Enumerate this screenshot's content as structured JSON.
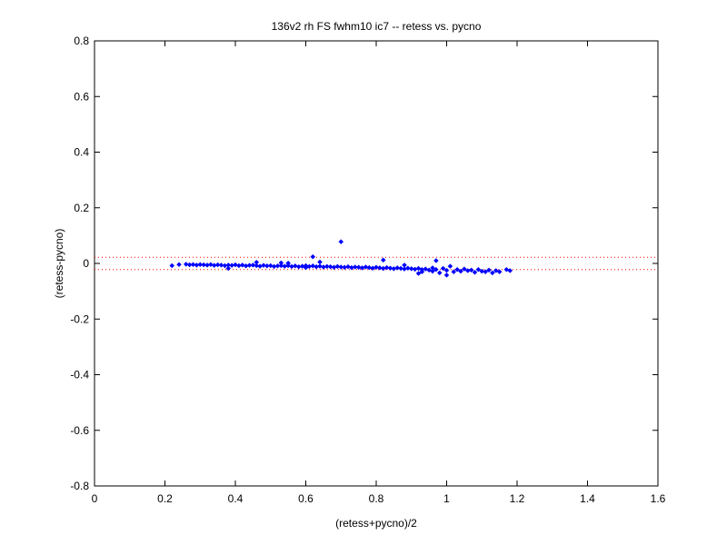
{
  "chart_data": {
    "type": "scatter",
    "title": "136v2 rh FS fwhm10 ic7 -- retess vs. pycno",
    "xlabel": "(retess+pycno)/2",
    "ylabel": "(retess-pycno)",
    "xlim": [
      0,
      1.6
    ],
    "ylim": [
      -0.8,
      0.8
    ],
    "xticks": [
      0,
      0.2,
      0.4,
      0.6,
      0.8,
      1,
      1.2,
      1.4,
      1.6
    ],
    "yticks": [
      -0.8,
      -0.6,
      -0.4,
      -0.2,
      0,
      0.2,
      0.4,
      0.6,
      0.8
    ],
    "xtick_labels": [
      "0",
      "0.2",
      "0.4",
      "0.6",
      "0.8",
      "1",
      "1.2",
      "1.4",
      "1.6"
    ],
    "ytick_labels": [
      "-0.8",
      "-0.6",
      "-0.4",
      "-0.2",
      "0",
      "0.2",
      "0.4",
      "0.6",
      "0.8"
    ],
    "grid": false,
    "marker_color": "#0000ff",
    "reference_line_color": "#ff0000",
    "reference_lines": [
      0.022,
      -0.022
    ],
    "points": [
      [
        0.22,
        -0.008
      ],
      [
        0.24,
        -0.004
      ],
      [
        0.26,
        -0.003
      ],
      [
        0.27,
        -0.005
      ],
      [
        0.28,
        -0.004
      ],
      [
        0.29,
        -0.006
      ],
      [
        0.3,
        -0.004
      ],
      [
        0.31,
        -0.005
      ],
      [
        0.32,
        -0.006
      ],
      [
        0.33,
        -0.004
      ],
      [
        0.34,
        -0.007
      ],
      [
        0.35,
        -0.005
      ],
      [
        0.36,
        -0.006
      ],
      [
        0.37,
        -0.008
      ],
      [
        0.38,
        -0.006
      ],
      [
        0.38,
        -0.018
      ],
      [
        0.39,
        -0.007
      ],
      [
        0.4,
        -0.005
      ],
      [
        0.41,
        -0.008
      ],
      [
        0.42,
        -0.006
      ],
      [
        0.43,
        -0.009
      ],
      [
        0.44,
        -0.007
      ],
      [
        0.45,
        -0.006
      ],
      [
        0.46,
        -0.008
      ],
      [
        0.46,
        0.004
      ],
      [
        0.47,
        -0.01
      ],
      [
        0.48,
        -0.007
      ],
      [
        0.49,
        -0.009
      ],
      [
        0.5,
        -0.008
      ],
      [
        0.51,
        -0.011
      ],
      [
        0.52,
        -0.009
      ],
      [
        0.53,
        -0.008
      ],
      [
        0.53,
        0.002
      ],
      [
        0.54,
        -0.01
      ],
      [
        0.55,
        -0.008
      ],
      [
        0.55,
        0.001
      ],
      [
        0.56,
        -0.011
      ],
      [
        0.57,
        -0.009
      ],
      [
        0.58,
        -0.012
      ],
      [
        0.59,
        -0.01
      ],
      [
        0.6,
        -0.008
      ],
      [
        0.6,
        -0.015
      ],
      [
        0.61,
        -0.011
      ],
      [
        0.62,
        -0.009
      ],
      [
        0.62,
        0.024
      ],
      [
        0.63,
        -0.012
      ],
      [
        0.64,
        -0.01
      ],
      [
        0.64,
        0.005
      ],
      [
        0.65,
        -0.013
      ],
      [
        0.66,
        -0.011
      ],
      [
        0.67,
        -0.012
      ],
      [
        0.68,
        -0.014
      ],
      [
        0.69,
        -0.011
      ],
      [
        0.7,
        -0.013
      ],
      [
        0.7,
        0.078
      ],
      [
        0.71,
        -0.014
      ],
      [
        0.72,
        -0.012
      ],
      [
        0.73,
        -0.015
      ],
      [
        0.74,
        -0.013
      ],
      [
        0.75,
        -0.014
      ],
      [
        0.76,
        -0.016
      ],
      [
        0.77,
        -0.013
      ],
      [
        0.78,
        -0.015
      ],
      [
        0.79,
        -0.017
      ],
      [
        0.8,
        -0.014
      ],
      [
        0.81,
        -0.016
      ],
      [
        0.82,
        -0.018
      ],
      [
        0.82,
        0.012
      ],
      [
        0.83,
        -0.015
      ],
      [
        0.84,
        -0.017
      ],
      [
        0.85,
        -0.019
      ],
      [
        0.86,
        -0.016
      ],
      [
        0.87,
        -0.018
      ],
      [
        0.88,
        -0.02
      ],
      [
        0.88,
        -0.006
      ],
      [
        0.89,
        -0.017
      ],
      [
        0.9,
        -0.019
      ],
      [
        0.91,
        -0.021
      ],
      [
        0.92,
        -0.018
      ],
      [
        0.92,
        -0.036
      ],
      [
        0.93,
        -0.022
      ],
      [
        0.93,
        -0.03
      ],
      [
        0.94,
        -0.02
      ],
      [
        0.95,
        -0.024
      ],
      [
        0.96,
        -0.016
      ],
      [
        0.96,
        -0.028
      ],
      [
        0.97,
        0.01
      ],
      [
        0.97,
        -0.022
      ],
      [
        0.98,
        -0.034
      ],
      [
        0.99,
        -0.018
      ],
      [
        1.0,
        -0.025
      ],
      [
        1.0,
        -0.042
      ],
      [
        1.01,
        -0.01
      ],
      [
        1.02,
        -0.03
      ],
      [
        1.03,
        -0.022
      ],
      [
        1.04,
        -0.028
      ],
      [
        1.05,
        -0.02
      ],
      [
        1.06,
        -0.026
      ],
      [
        1.07,
        -0.024
      ],
      [
        1.08,
        -0.032
      ],
      [
        1.09,
        -0.022
      ],
      [
        1.1,
        -0.028
      ],
      [
        1.11,
        -0.03
      ],
      [
        1.12,
        -0.024
      ],
      [
        1.13,
        -0.034
      ],
      [
        1.14,
        -0.026
      ],
      [
        1.15,
        -0.03
      ],
      [
        1.17,
        -0.022
      ],
      [
        1.18,
        -0.026
      ]
    ]
  }
}
